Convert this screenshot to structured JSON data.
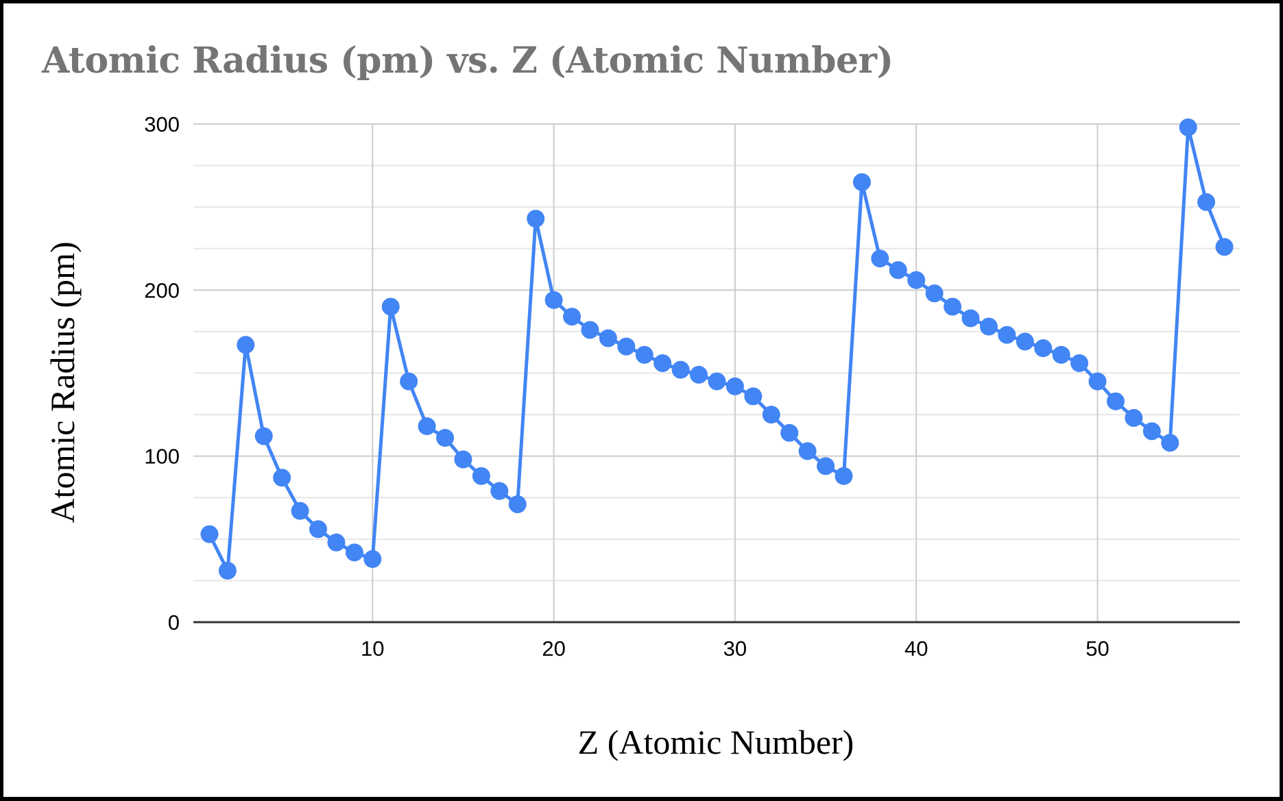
{
  "chart_data": {
    "type": "line",
    "title": "Atomic Radius (pm) vs. Z (Atomic Number)",
    "xlabel": "Z (Atomic Number)",
    "ylabel": "Atomic Radius (pm)",
    "xlim": [
      0,
      57.85
    ],
    "ylim": [
      0,
      300
    ],
    "x_ticks": [
      10,
      20,
      30,
      40,
      50
    ],
    "y_ticks": [
      0,
      100,
      200,
      300
    ],
    "y_minor_gridlines_every": 25,
    "grid": true,
    "legend": "none",
    "series": [
      {
        "name": "Atomic Radius (pm)",
        "color": "#4285F4",
        "markers": true,
        "x": [
          1,
          2,
          3,
          4,
          5,
          6,
          7,
          8,
          9,
          10,
          11,
          12,
          13,
          14,
          15,
          16,
          17,
          18,
          19,
          20,
          21,
          22,
          23,
          24,
          25,
          26,
          27,
          28,
          29,
          30,
          31,
          32,
          33,
          34,
          35,
          36,
          37,
          38,
          39,
          40,
          41,
          42,
          43,
          44,
          45,
          46,
          47,
          48,
          49,
          50,
          51,
          52,
          53,
          54,
          55,
          56,
          57
        ],
        "values": [
          53,
          31,
          167,
          112,
          87,
          67,
          56,
          48,
          42,
          38,
          190,
          145,
          118,
          111,
          98,
          88,
          79,
          71,
          243,
          194,
          184,
          176,
          171,
          166,
          161,
          156,
          152,
          149,
          145,
          142,
          136,
          125,
          114,
          103,
          94,
          88,
          265,
          219,
          212,
          206,
          198,
          190,
          183,
          178,
          173,
          169,
          165,
          161,
          156,
          145,
          133,
          123,
          115,
          108,
          298,
          253,
          226
        ]
      }
    ]
  },
  "colors": {
    "series": "#4285F4",
    "title": "#757575",
    "grid_major": "#cccccc",
    "grid_minor": "#e6e6e6",
    "axis": "#333333",
    "frame": "#000000"
  }
}
